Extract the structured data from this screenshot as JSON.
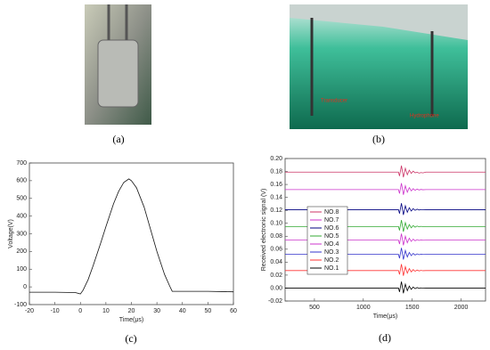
{
  "panels": [
    "(a)",
    "(b)",
    "(c)",
    "(d)"
  ],
  "photo_labels": [
    "Transducer",
    "Hydrophone"
  ],
  "chart_data": [
    {
      "type": "line",
      "xlabel": "Time(μs)",
      "ylabel": "Voltage(V)",
      "x": [
        -20,
        -10,
        -2,
        0,
        1,
        3,
        5,
        8,
        10,
        13,
        15,
        17,
        19,
        20,
        22,
        25,
        28,
        30,
        33,
        35,
        36,
        40,
        50,
        60
      ],
      "values": [
        -30,
        -30,
        -32,
        -40,
        -20,
        40,
        120,
        250,
        340,
        470,
        540,
        590,
        610,
        600,
        560,
        450,
        300,
        200,
        70,
        5,
        -25,
        -25,
        -25,
        -28
      ],
      "color": "#111111",
      "xlim": [
        -20,
        60
      ],
      "xticks": [
        -20,
        -10,
        0,
        10,
        20,
        30,
        40,
        50,
        60
      ],
      "ylim": [
        -100,
        700
      ],
      "yticks": [
        -100,
        0,
        100,
        200,
        300,
        400,
        500,
        600,
        700
      ]
    },
    {
      "type": "line",
      "xlabel": "Time(μs)",
      "ylabel": "Received electronic signal (V)",
      "legend": "center-left",
      "x": [
        200,
        1360,
        1370,
        1390,
        1410,
        1430,
        1450,
        1470,
        1490,
        1510,
        1530,
        1550,
        1570,
        1590,
        1610,
        1640,
        2250
      ],
      "series": [
        {
          "name": "NO.1",
          "color": "#000000",
          "values": [
            0,
            0,
            -0.006,
            0.01,
            -0.008,
            0.006,
            -0.004,
            0.003,
            -0.002,
            0.0015,
            -0.001,
            0.0008,
            -0.0005,
            0.0003,
            -0.0002,
            0,
            0
          ]
        },
        {
          "name": "NO.2",
          "color": "#ff3333",
          "values": [
            0.027,
            0.027,
            0.021,
            0.037,
            0.019,
            0.033,
            0.023,
            0.03,
            0.025,
            0.0285,
            0.026,
            0.0278,
            0.0265,
            0.0273,
            0.0268,
            0.027,
            0.027
          ]
        },
        {
          "name": "NO.3",
          "color": "#3333cc",
          "values": [
            0.052,
            0.052,
            0.046,
            0.062,
            0.044,
            0.058,
            0.048,
            0.055,
            0.05,
            0.0535,
            0.051,
            0.0528,
            0.0515,
            0.0523,
            0.0518,
            0.052,
            0.052
          ]
        },
        {
          "name": "NO.4",
          "color": "#cc33cc",
          "values": [
            0.074,
            0.074,
            0.068,
            0.084,
            0.066,
            0.08,
            0.07,
            0.077,
            0.072,
            0.0755,
            0.073,
            0.0748,
            0.0735,
            0.0743,
            0.0738,
            0.074,
            0.074
          ]
        },
        {
          "name": "NO.5",
          "color": "#33aa33",
          "values": [
            0.095,
            0.095,
            0.089,
            0.105,
            0.087,
            0.101,
            0.091,
            0.098,
            0.093,
            0.0965,
            0.094,
            0.0958,
            0.0945,
            0.0953,
            0.0948,
            0.095,
            0.095
          ]
        },
        {
          "name": "NO.6",
          "color": "#000080",
          "values": [
            0.121,
            0.121,
            0.115,
            0.131,
            0.113,
            0.127,
            0.117,
            0.124,
            0.119,
            0.1225,
            0.12,
            0.1218,
            0.1205,
            0.1213,
            0.1208,
            0.121,
            0.121
          ]
        },
        {
          "name": "NO.7",
          "color": "#cc33cc",
          "values": [
            0.152,
            0.152,
            0.146,
            0.162,
            0.144,
            0.158,
            0.148,
            0.155,
            0.15,
            0.1535,
            0.151,
            0.1528,
            0.1515,
            0.1523,
            0.1518,
            0.152,
            0.152
          ]
        },
        {
          "name": "NO.8",
          "color": "#cc3366",
          "values": [
            0.179,
            0.179,
            0.173,
            0.189,
            0.171,
            0.185,
            0.175,
            0.182,
            0.177,
            0.1805,
            0.178,
            0.1788,
            0.1775,
            0.1783,
            0.1778,
            0.179,
            0.179
          ]
        }
      ],
      "xlim": [
        200,
        2250
      ],
      "xticks": [
        500,
        1000,
        1500,
        2000
      ],
      "ylim": [
        -0.02,
        0.2
      ],
      "yticks": [
        {
          "value": -0.02,
          "label": "-0.02"
        },
        {
          "value": 0,
          "label": "0.00"
        },
        {
          "value": 0.02,
          "label": "0.02"
        },
        {
          "value": 0.04,
          "label": "0.04"
        },
        {
          "value": 0.06,
          "label": "0.06"
        },
        {
          "value": 0.08,
          "label": "0.08"
        },
        {
          "value": 0.1,
          "label": "0.10"
        },
        {
          "value": 0.12,
          "label": "0.12"
        },
        {
          "value": 0.14,
          "label": "0.14"
        },
        {
          "value": 0.16,
          "label": "0.16"
        },
        {
          "value": 0.18,
          "label": "0.18"
        },
        {
          "value": 0.2,
          "label": "0.20"
        }
      ]
    }
  ]
}
